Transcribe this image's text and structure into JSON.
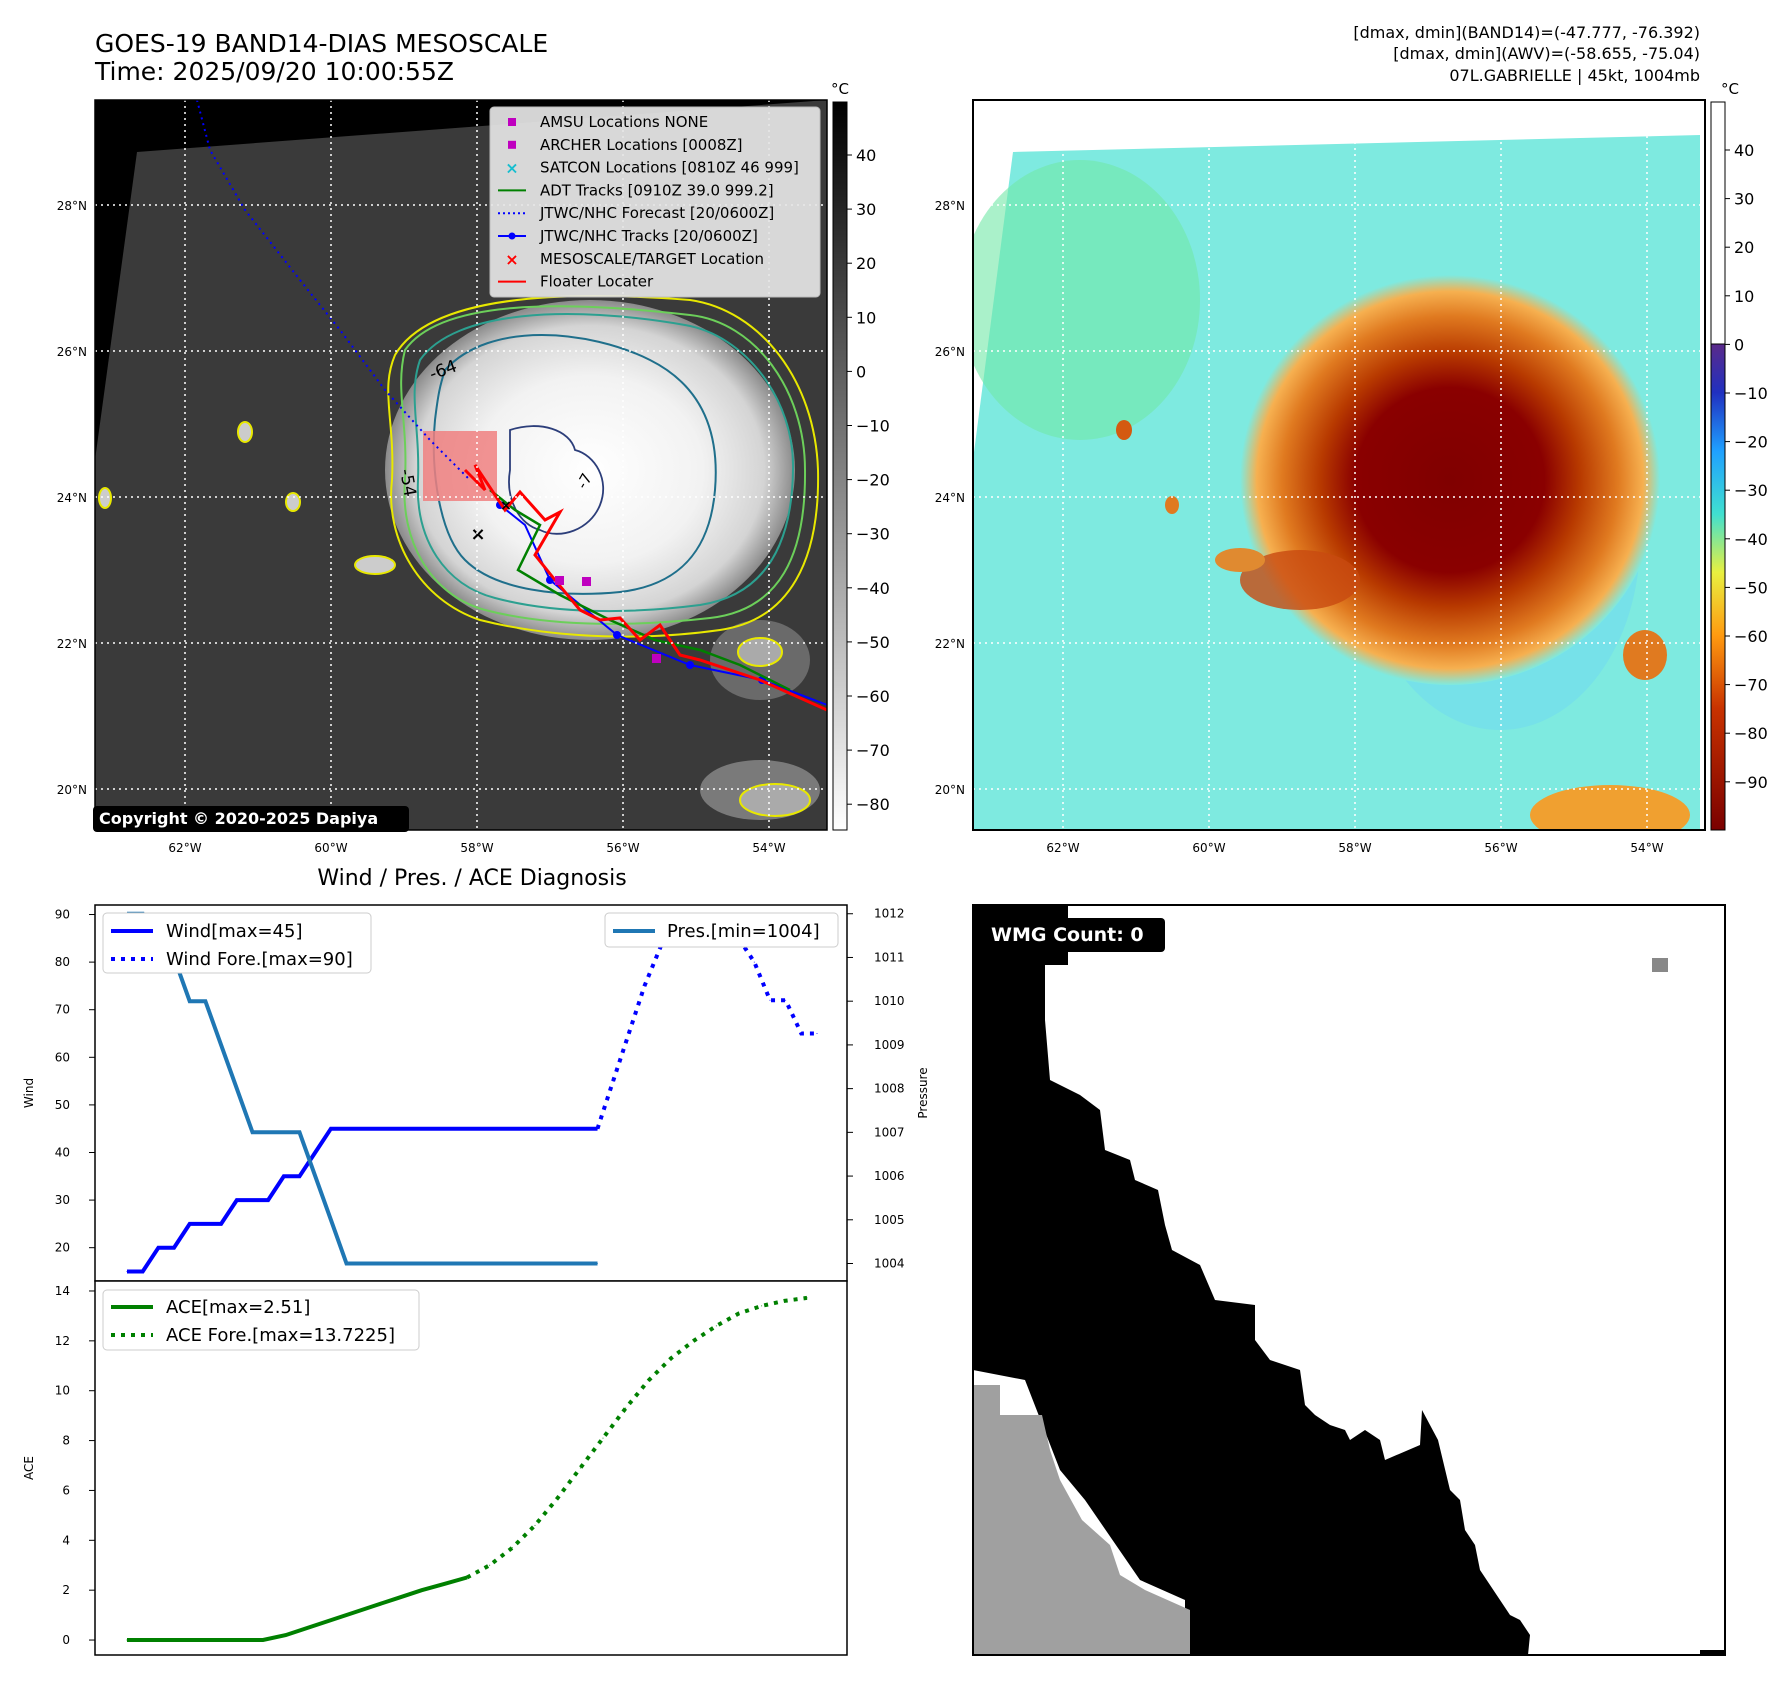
{
  "header": {
    "title_line1": "GOES-19 BAND14-DIAS MESOSCALE",
    "title_line2": "Time: 2025/09/20 10:00:55Z",
    "info_line1": "[dmax, dmin](BAND14)=(-47.777, -76.392)",
    "info_line2": "[dmax, dmin](AWV)=(-58.655, -75.04)",
    "info_line3": "07L.GABRIELLE | 45kt, 1004mb"
  },
  "maps": {
    "lat_labels": [
      "28°N",
      "26°N",
      "24°N",
      "22°N",
      "20°N"
    ],
    "lon_labels": [
      "62°W",
      "60°W",
      "58°W",
      "56°W",
      "54°W"
    ],
    "contour_labels": [
      "-64",
      "-54",
      "-7"
    ],
    "copyright": "Copyright © 2020-2025 Dapiya",
    "cbar_unit": "°C",
    "cbar1_ticks": [
      "40",
      "30",
      "20",
      "10",
      "0",
      "−10",
      "−20",
      "−30",
      "−40",
      "−50",
      "−60",
      "−70",
      "−80"
    ],
    "cbar2_ticks": [
      "40",
      "30",
      "20",
      "10",
      "0",
      "−10",
      "−20",
      "−30",
      "−40",
      "−50",
      "−60",
      "−70",
      "−80",
      "−90"
    ],
    "colors": {
      "background": "#000000",
      "track_blue": "#0000ff",
      "adt_green": "#008000",
      "floater_red": "#ff0000",
      "satcon_cyan": "#17becf",
      "archer_magenta": "#bf00bf",
      "mesoscale_box": "#f08080"
    }
  },
  "legend": [
    {
      "label": "AMSU Locations NONE",
      "marker": "square",
      "color": "#bf00bf"
    },
    {
      "label": "ARCHER Locations [0008Z]",
      "marker": "square",
      "color": "#bf00bf"
    },
    {
      "label": "SATCON Locations [0810Z 46 999]",
      "marker": "x",
      "color": "#17becf"
    },
    {
      "label": "ADT Tracks [0910Z 39.0 999.2]",
      "marker": "line",
      "color": "#008000"
    },
    {
      "label": "JTWC/NHC Forecast [20/0600Z]",
      "marker": "dotted",
      "color": "#0000ff"
    },
    {
      "label": "JTWC/NHC Tracks [20/0600Z]",
      "marker": "line-dot",
      "color": "#0000ff"
    },
    {
      "label": "MESOSCALE/TARGET Location",
      "marker": "x",
      "color": "#ff0000"
    },
    {
      "label": "Floater Locater",
      "marker": "line",
      "color": "#ff0000"
    }
  ],
  "wmg": {
    "label": "WMG Count: 0"
  },
  "chart_data": [
    {
      "type": "line",
      "title": "Wind / Pres. / ACE Diagnosis",
      "ylabel": "Wind",
      "y2label": "Pressure",
      "ylim": [
        13,
        92
      ],
      "y2lim": [
        1003.6,
        1012.2
      ],
      "yticks": [
        20,
        30,
        40,
        50,
        60,
        70,
        80,
        90
      ],
      "y2ticks": [
        1004,
        1005,
        1006,
        1007,
        1008,
        1009,
        1010,
        1011,
        1012
      ],
      "x": [
        0,
        1,
        2,
        3,
        4,
        5,
        6,
        7,
        8,
        9,
        10,
        11,
        12,
        13,
        14,
        15,
        16,
        17,
        18,
        19,
        20,
        21,
        22,
        23,
        24,
        25,
        26,
        27,
        28,
        29,
        30,
        31,
        32,
        33,
        34,
        35,
        36,
        37,
        38,
        39,
        40,
        41,
        42,
        43,
        44
      ],
      "series": [
        {
          "name": "Wind[max=45]",
          "style": "solid",
          "color": "#0000ff",
          "axis": "left",
          "x": [
            0,
            1,
            2,
            3,
            4,
            5,
            6,
            7,
            8,
            9,
            10,
            11,
            12,
            13,
            14,
            15,
            16,
            17,
            18,
            19,
            20,
            21,
            22,
            23,
            24,
            25,
            26,
            27,
            28,
            29,
            30
          ],
          "values": [
            15,
            15,
            20,
            20,
            25,
            25,
            25,
            30,
            30,
            30,
            35,
            35,
            40,
            45,
            45,
            45,
            45,
            45,
            45,
            45,
            45,
            45,
            45,
            45,
            45,
            45,
            45,
            45,
            45,
            45,
            45
          ]
        },
        {
          "name": "Wind Fore.[max=90]",
          "style": "dotted",
          "color": "#0000ff",
          "axis": "left",
          "x": [
            30,
            31,
            32,
            33,
            34,
            35,
            36,
            37,
            38,
            39,
            40,
            41,
            42,
            43,
            44
          ],
          "values": [
            45,
            55,
            65,
            75,
            83,
            90,
            90,
            88,
            85,
            85,
            80,
            72,
            72,
            65,
            65
          ]
        },
        {
          "name": "Pres.[min=1004]",
          "style": "solid",
          "color": "#1f77b4",
          "axis": "right",
          "x": [
            0,
            1,
            2,
            3,
            4,
            5,
            6,
            7,
            8,
            9,
            10,
            11,
            12,
            13,
            14,
            15,
            16,
            17,
            18,
            19,
            20,
            21,
            22,
            23,
            24,
            25,
            26,
            27,
            28,
            29,
            30
          ],
          "values": [
            1012,
            1012,
            1011,
            1011,
            1010,
            1010,
            1009,
            1008,
            1007,
            1007,
            1007,
            1007,
            1006,
            1005,
            1004,
            1004,
            1004,
            1004,
            1004,
            1004,
            1004,
            1004,
            1004,
            1004,
            1004,
            1004,
            1004,
            1004,
            1004,
            1004,
            1004
          ]
        }
      ]
    },
    {
      "type": "line",
      "ylabel": "ACE",
      "ylim": [
        -0.6,
        14.4
      ],
      "yticks": [
        0,
        2,
        4,
        6,
        8,
        10,
        12,
        14
      ],
      "series": [
        {
          "name": "ACE[max=2.51]",
          "style": "solid",
          "color": "#008000",
          "x": [
            0,
            2,
            4,
            6,
            8,
            10,
            12,
            14,
            16,
            18,
            20,
            22,
            24,
            26,
            28,
            30
          ],
          "values": [
            0,
            0,
            0,
            0,
            0,
            0,
            0,
            0.2,
            0.5,
            0.8,
            1.1,
            1.4,
            1.7,
            2.0,
            2.25,
            2.51
          ]
        },
        {
          "name": "ACE Fore.[max=13.7225]",
          "style": "dotted",
          "color": "#008000",
          "x": [
            30,
            32,
            34,
            36,
            38,
            40,
            42,
            44,
            46,
            48,
            50,
            52,
            54,
            56,
            58,
            60
          ],
          "values": [
            2.51,
            3.0,
            3.7,
            4.6,
            5.7,
            6.9,
            8.1,
            9.3,
            10.4,
            11.3,
            12.0,
            12.6,
            13.1,
            13.4,
            13.6,
            13.7225
          ]
        }
      ]
    }
  ]
}
